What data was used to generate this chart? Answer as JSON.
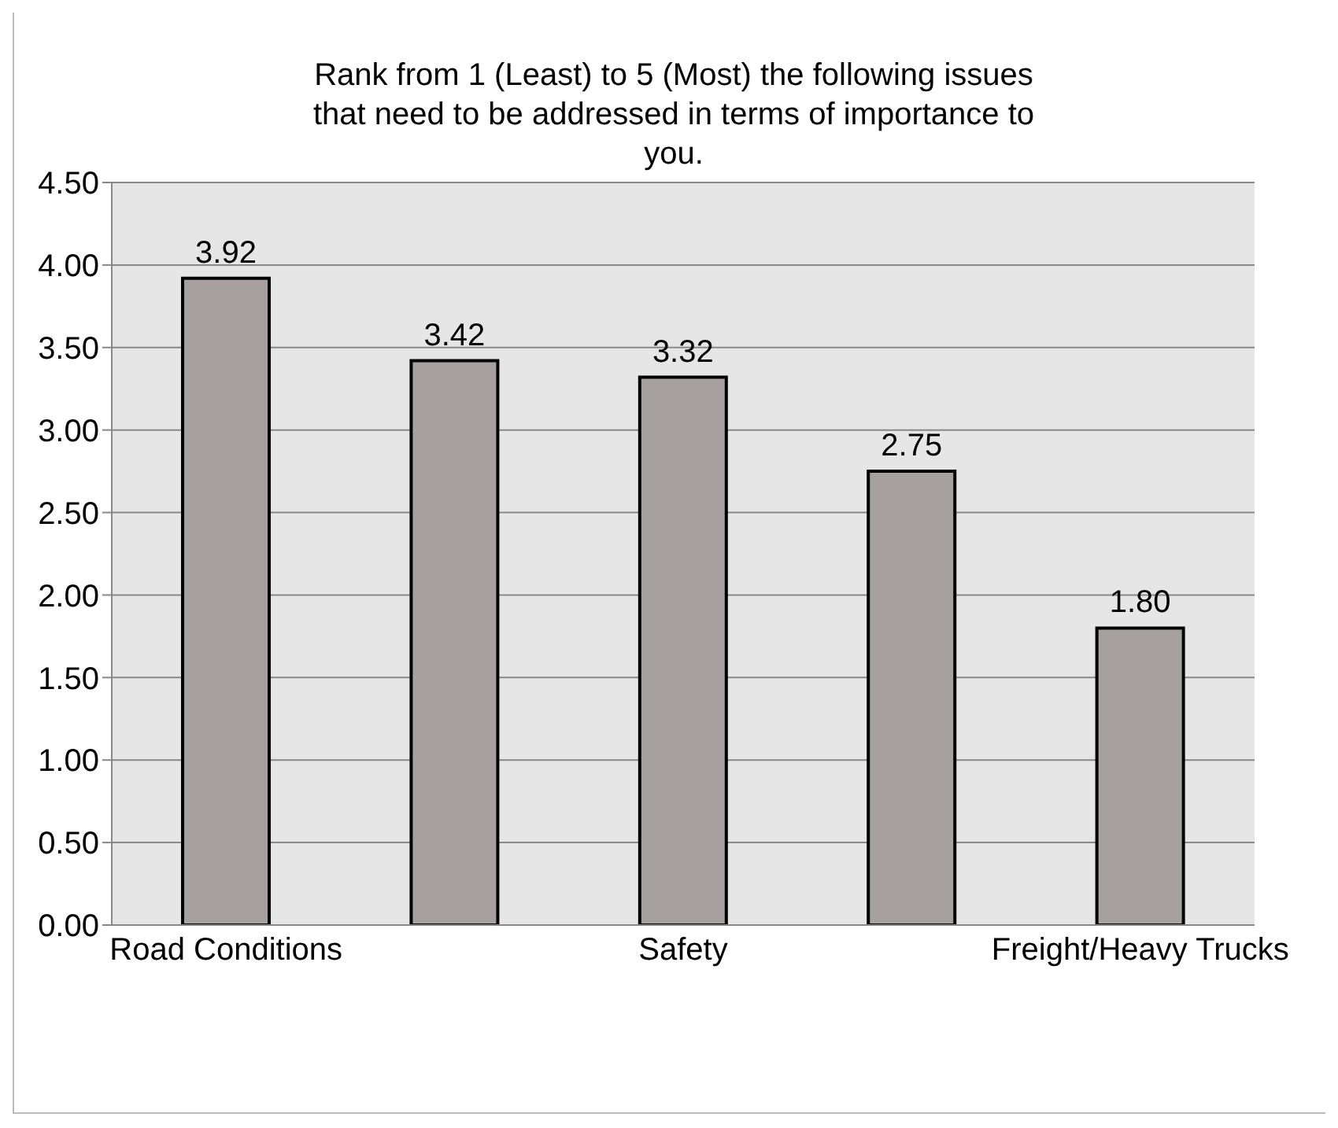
{
  "chart_data": {
    "type": "bar",
    "title": "Rank from 1 (Least) to 5 (Most) the following issues that need to be addressed in terms of importance to you.",
    "categories": [
      "Road Conditions",
      null,
      "Safety",
      null,
      "Freight/Heavy Trucks"
    ],
    "values": [
      3.92,
      3.42,
      3.32,
      2.75,
      1.8
    ],
    "value_labels": [
      "3.92",
      "3.42",
      "3.32",
      "2.75",
      "1.80"
    ],
    "color": "#a6a09e",
    "ylim": [
      0,
      4.5
    ],
    "yticks": [
      {
        "value": 0,
        "label": "0.00"
      },
      {
        "value": 0.5,
        "label": "0.50"
      },
      {
        "value": 1,
        "label": "1.00"
      },
      {
        "value": 1.5,
        "label": "1.50"
      },
      {
        "value": 2,
        "label": "2.00"
      },
      {
        "value": 2.5,
        "label": "2.50"
      },
      {
        "value": 3,
        "label": "3.00"
      },
      {
        "value": 3.5,
        "label": "3.50"
      },
      {
        "value": 4,
        "label": "4.00"
      },
      {
        "value": 4.5,
        "label": "4.50"
      }
    ],
    "grid": "y"
  }
}
